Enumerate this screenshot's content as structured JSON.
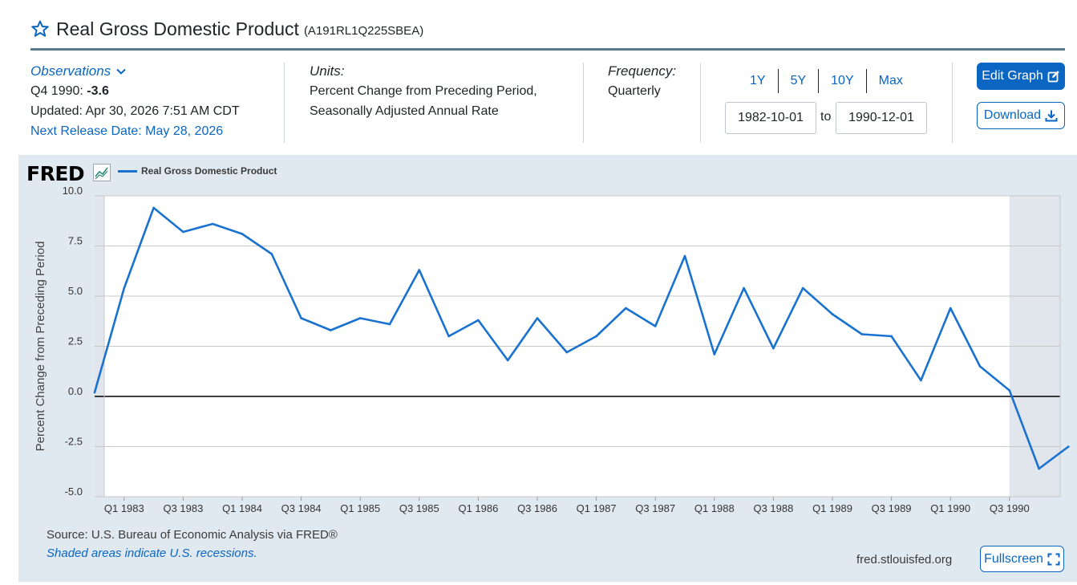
{
  "header": {
    "title": "Real Gross Domestic Product",
    "series_id": "(A191RL1Q225SBEA)"
  },
  "observations": {
    "toggle_label": "Observations",
    "latest_period": "Q4 1990:",
    "latest_value": "-3.6",
    "updated": "Updated: Apr 30, 2026 7:51 AM CDT",
    "next_release": "Next Release Date: May 28, 2026"
  },
  "units": {
    "label": "Units:",
    "line1": "Percent Change from Preceding Period,",
    "line2": "Seasonally Adjusted Annual Rate"
  },
  "frequency": {
    "label": "Frequency:",
    "value": "Quarterly"
  },
  "range_buttons": [
    "1Y",
    "5Y",
    "10Y",
    "Max"
  ],
  "date_range": {
    "start": "1982-10-01",
    "to_label": "to",
    "end": "1990-12-01"
  },
  "buttons": {
    "edit_graph": "Edit Graph",
    "download": "Download",
    "fullscreen": "Fullscreen"
  },
  "graph": {
    "logo": "FRED",
    "source": "Source: U.S. Bureau of Economic Analysis via FRED®",
    "recession_note": "Shaded areas indicate U.S. recessions.",
    "site_url": "fred.stlouisfed.org"
  },
  "colors": {
    "accent": "#0a66c2",
    "series_line": "#1a72d0",
    "panel_bg": "#e1e9f0",
    "recession_shade": "#e1e5ec"
  },
  "chart_data": {
    "type": "line",
    "title": "",
    "ylabel": "Percent Change from Preceding Period",
    "xlabel": "",
    "ylim": [
      -5.0,
      10.0
    ],
    "y_ticks": [
      "10.0",
      "7.5",
      "5.0",
      "2.5",
      "0.0",
      "-2.5",
      "-5.0"
    ],
    "y_tick_values": [
      10,
      7.5,
      5,
      2.5,
      0,
      -2.5,
      -5
    ],
    "x_ticks": [
      "Q1 1983",
      "Q3 1983",
      "Q1 1984",
      "Q3 1984",
      "Q1 1985",
      "Q3 1985",
      "Q1 1986",
      "Q3 1986",
      "Q1 1987",
      "Q3 1987",
      "Q1 1988",
      "Q3 1988",
      "Q1 1989",
      "Q3 1989",
      "Q1 1990",
      "Q3 1990"
    ],
    "x_tick_index": [
      1,
      3,
      5,
      7,
      9,
      11,
      13,
      15,
      17,
      19,
      21,
      23,
      25,
      27,
      29,
      31
    ],
    "recession": {
      "start_index": 31,
      "end_index": 33
    },
    "grid": true,
    "legend": "top-left",
    "series": [
      {
        "name": "Real Gross Domestic Product",
        "x": [
          "1982-10-01",
          "1983-01-01",
          "1983-04-01",
          "1983-07-01",
          "1983-10-01",
          "1984-01-01",
          "1984-04-01",
          "1984-07-01",
          "1984-10-01",
          "1985-01-01",
          "1985-04-01",
          "1985-07-01",
          "1985-10-01",
          "1986-01-01",
          "1986-04-01",
          "1986-07-01",
          "1986-10-01",
          "1987-01-01",
          "1987-04-01",
          "1987-07-01",
          "1987-10-01",
          "1988-01-01",
          "1988-04-01",
          "1988-07-01",
          "1988-10-01",
          "1989-01-01",
          "1989-04-01",
          "1989-07-01",
          "1989-10-01",
          "1990-01-01",
          "1990-04-01",
          "1990-07-01",
          "1990-10-01",
          "1991-01-01"
        ],
        "values": [
          0.2,
          5.4,
          9.4,
          8.2,
          8.6,
          8.1,
          7.1,
          3.9,
          3.3,
          3.9,
          3.6,
          6.3,
          3.0,
          3.8,
          1.8,
          3.9,
          2.2,
          3.0,
          4.4,
          3.5,
          7.0,
          2.1,
          5.4,
          2.4,
          5.4,
          4.1,
          3.1,
          3.0,
          0.8,
          4.4,
          1.5,
          0.3,
          -3.6,
          -2.5
        ]
      }
    ]
  }
}
